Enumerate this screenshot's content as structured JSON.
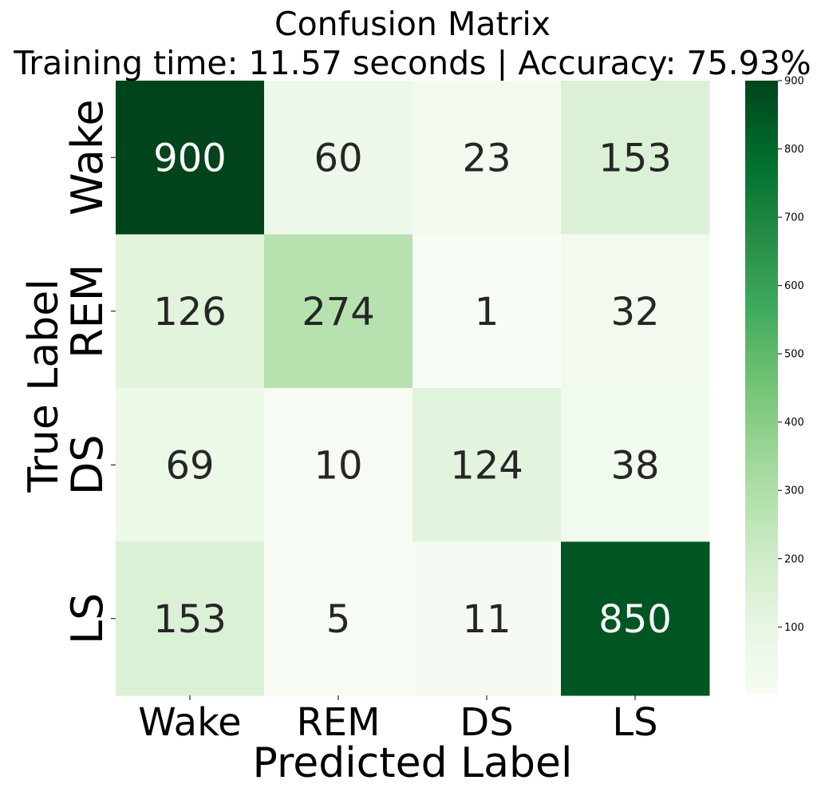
{
  "chart_data": {
    "type": "heatmap",
    "title_line1": "Confusion Matrix",
    "title_line2": "Training time: 11.57 seconds | Accuracy: 75.93%",
    "xlabel": "Predicted Label",
    "ylabel": "True Label",
    "x_categories": [
      "Wake",
      "REM",
      "DS",
      "LS"
    ],
    "y_categories": [
      "Wake",
      "REM",
      "DS",
      "LS"
    ],
    "matrix": [
      [
        900,
        60,
        23,
        153
      ],
      [
        126,
        274,
        1,
        32
      ],
      [
        69,
        10,
        124,
        38
      ],
      [
        153,
        5,
        11,
        850
      ]
    ],
    "colormap": "Greens",
    "color_range": [
      1,
      900
    ],
    "colorbar_ticks": [
      100,
      200,
      300,
      400,
      500,
      600,
      700,
      800,
      900
    ],
    "colorbar_tick_labels": [
      "100",
      "200",
      "300",
      "400",
      "500",
      "600",
      "700",
      "800",
      "900"
    ]
  }
}
